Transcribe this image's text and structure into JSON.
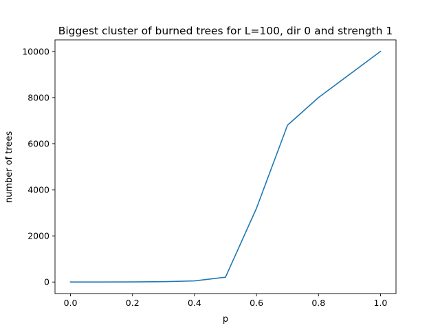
{
  "chart_data": {
    "type": "line",
    "title": "Biggest cluster of burned trees for L=100, dir 0 and strength 1",
    "xlabel": "p",
    "ylabel": "number of trees",
    "xlim": [
      -0.05,
      1.05
    ],
    "ylim": [
      -500,
      10500
    ],
    "xticks": [
      0.0,
      0.2,
      0.4,
      0.6,
      0.8,
      1.0
    ],
    "xtick_labels": [
      "0.0",
      "0.2",
      "0.4",
      "0.6",
      "0.8",
      "1.0"
    ],
    "yticks": [
      0,
      2000,
      4000,
      6000,
      8000,
      10000
    ],
    "ytick_labels": [
      "0",
      "2000",
      "4000",
      "6000",
      "8000",
      "10000"
    ],
    "grid": false,
    "series": [
      {
        "color": "#1f77b4",
        "x": [
          0.0,
          0.1,
          0.2,
          0.3,
          0.4,
          0.5,
          0.6,
          0.7,
          0.8,
          0.9,
          1.0
        ],
        "y": [
          1,
          2,
          5,
          15,
          50,
          210,
          3200,
          6800,
          8000,
          9000,
          10000
        ]
      }
    ]
  }
}
